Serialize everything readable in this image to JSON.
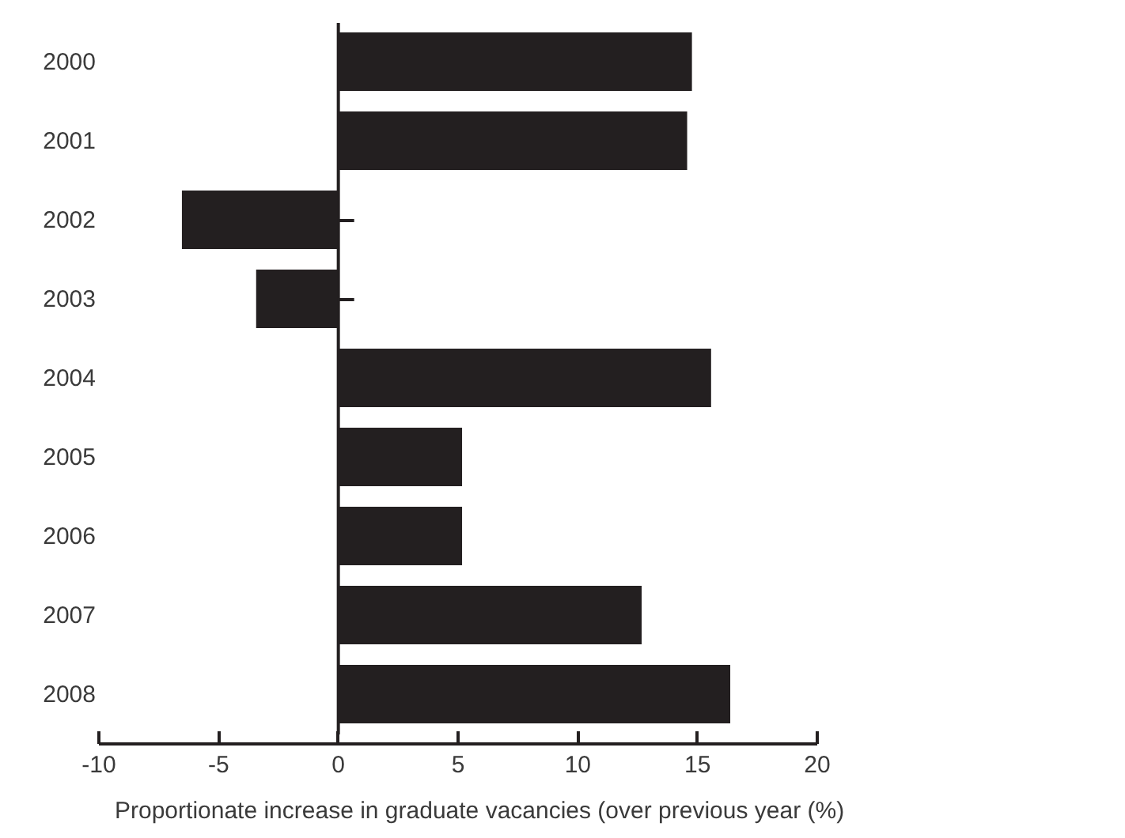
{
  "chart_data": {
    "type": "bar",
    "orientation": "horizontal",
    "xlabel": "Proportionate increase in graduate vacancies (over previous year (%)",
    "categories": [
      "2000",
      "2001",
      "2002",
      "2003",
      "2004",
      "2005",
      "2006",
      "2007",
      "2008"
    ],
    "values": [
      14.8,
      14.6,
      -6.5,
      -3.4,
      15.6,
      5.2,
      5.2,
      12.7,
      16.4
    ],
    "color": "#231f20",
    "xlim": [
      -10,
      20
    ],
    "xticks": [
      -10,
      -5,
      0,
      5,
      10,
      15,
      20
    ]
  }
}
